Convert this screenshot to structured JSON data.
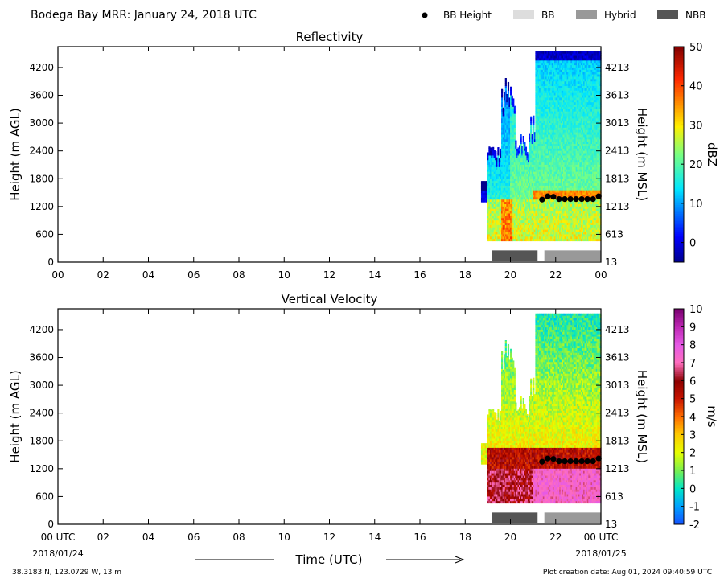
{
  "header": {
    "title": "Bodega Bay MRR:  January 24, 2018 UTC",
    "legend": [
      {
        "label": "BB Height",
        "kind": "dot",
        "color": "#000000"
      },
      {
        "label": "BB",
        "kind": "box",
        "color": "#dddddd"
      },
      {
        "label": "Hybrid",
        "kind": "box",
        "color": "#999999"
      },
      {
        "label": "NBB",
        "kind": "box",
        "color": "#555555"
      }
    ]
  },
  "footer": {
    "location": "38.3183 N, 123.0729 W, 13 m",
    "created": "Plot creation date: Aug 01, 2024 09:40:59 UTC",
    "xlabel": "Time (UTC)",
    "start_date": "2018/01/24",
    "end_date": "2018/01/25"
  },
  "chart_data": [
    {
      "type": "heatmap",
      "title": "Reflectivity",
      "ylabel": "Height (m AGL)",
      "ylabel_right": "Height (m MSL)",
      "xlim": [
        0,
        24
      ],
      "ylim": [
        0,
        4650
      ],
      "x_ticks": [
        "00",
        "02",
        "04",
        "06",
        "08",
        "10",
        "12",
        "14",
        "16",
        "18",
        "20",
        "22",
        "00"
      ],
      "y_ticks": [
        0,
        600,
        1200,
        1800,
        2400,
        3000,
        3600,
        4200
      ],
      "y_ticks_right": [
        13,
        613,
        1213,
        1813,
        2413,
        3013,
        3613,
        4213
      ],
      "colorbar": {
        "label": "dBZ",
        "min": -5,
        "max": 50,
        "ticks": [
          0,
          10,
          20,
          30,
          40,
          50
        ],
        "colormap": "jet"
      },
      "data_extent_hours": [
        18.7,
        24.0
      ],
      "bb_height": {
        "times": [
          21.4,
          21.65,
          21.9,
          22.15,
          22.4,
          22.65,
          22.9,
          23.15,
          23.4,
          23.65,
          23.9
        ],
        "heights": [
          1350,
          1420,
          1410,
          1360,
          1360,
          1360,
          1360,
          1360,
          1360,
          1360,
          1420
        ]
      },
      "bb_type_segments": [
        {
          "type": "NBB",
          "start": 19.2,
          "end": 21.2
        },
        {
          "type": "Hybrid",
          "start": 21.5,
          "end": 24.0
        }
      ]
    },
    {
      "type": "heatmap",
      "title": "Vertical Velocity",
      "ylabel": "Height (m AGL)",
      "ylabel_right": "Height (m MSL)",
      "xlim": [
        0,
        24
      ],
      "ylim": [
        0,
        4650
      ],
      "x_ticks": [
        "00 UTC",
        "02",
        "04",
        "06",
        "08",
        "10",
        "12",
        "14",
        "16",
        "18",
        "20",
        "22",
        "00 UTC"
      ],
      "y_ticks": [
        0,
        600,
        1200,
        1800,
        2400,
        3000,
        3600,
        4200
      ],
      "y_ticks_right": [
        13,
        613,
        1213,
        1813,
        2413,
        3013,
        3613,
        4213
      ],
      "colorbar": {
        "label": "m/s",
        "min": -2,
        "max": 10,
        "ticks": [
          -2,
          -1,
          0,
          1,
          2,
          3,
          4,
          5,
          6,
          7,
          8,
          9,
          10
        ],
        "colormap": "velocity"
      },
      "data_extent_hours": [
        18.7,
        24.0
      ],
      "bb_height": {
        "times": [
          21.4,
          21.65,
          21.9,
          22.15,
          22.4,
          22.65,
          22.9,
          23.15,
          23.4,
          23.65,
          23.9
        ],
        "heights": [
          1350,
          1420,
          1410,
          1360,
          1360,
          1360,
          1360,
          1360,
          1360,
          1360,
          1420
        ]
      },
      "bb_type_segments": [
        {
          "type": "NBB",
          "start": 19.2,
          "end": 21.2
        },
        {
          "type": "Hybrid",
          "start": 21.5,
          "end": 24.0
        }
      ]
    }
  ]
}
